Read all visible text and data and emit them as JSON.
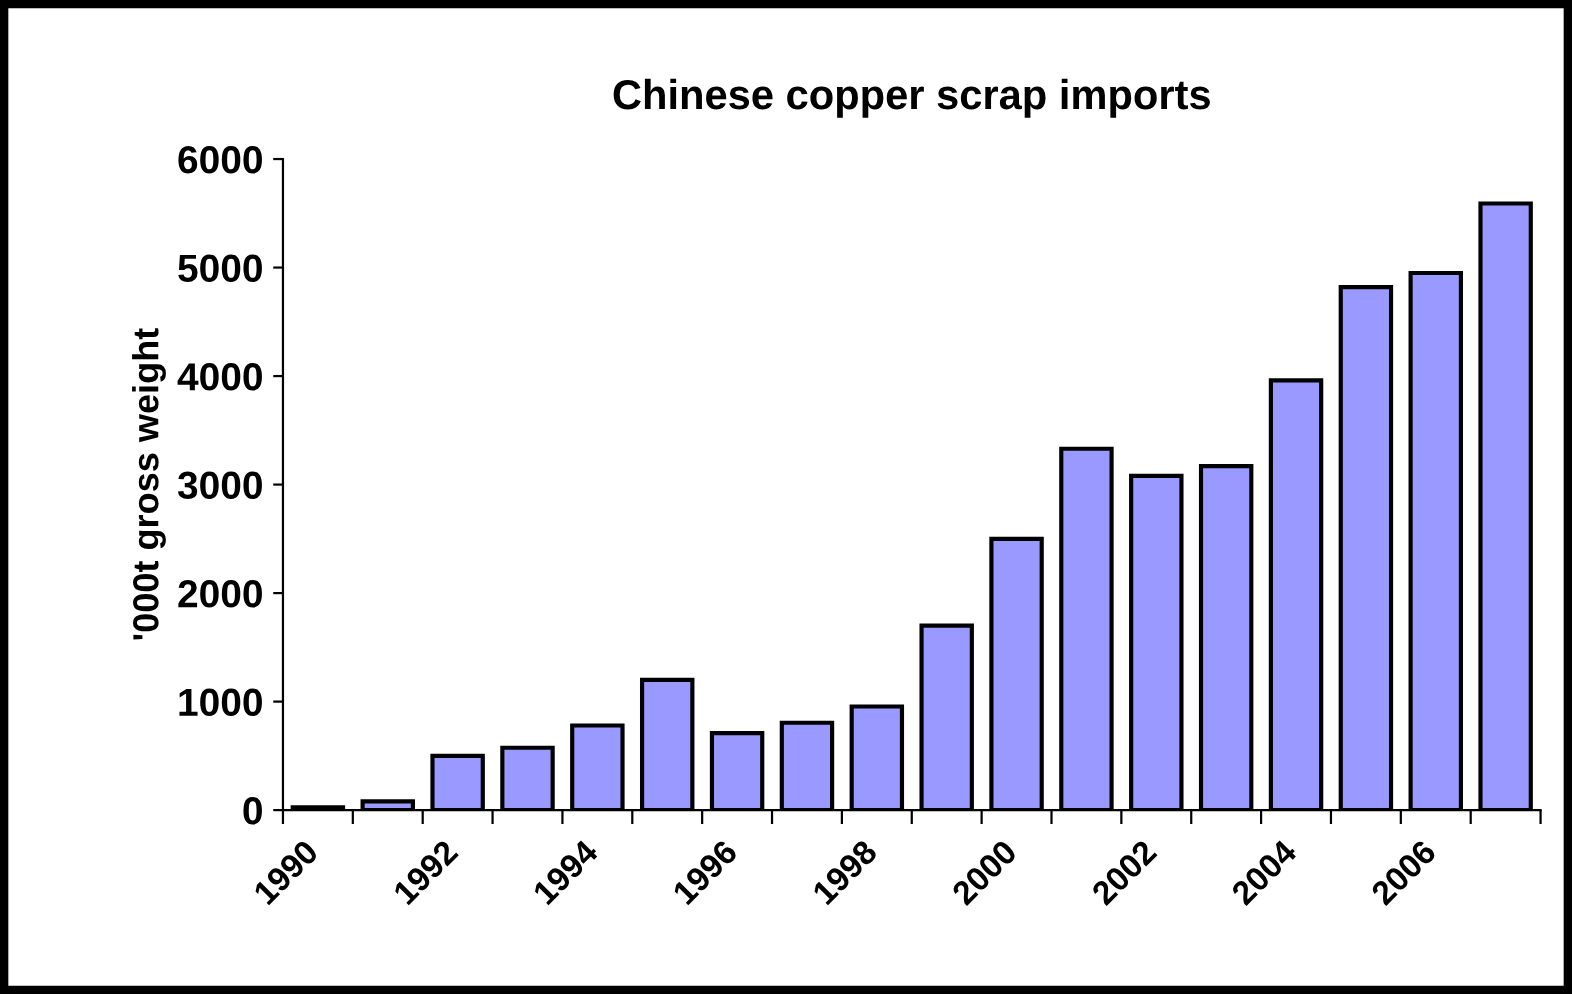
{
  "chart_data": {
    "type": "bar",
    "title": "Chinese copper scrap imports",
    "ylabel": "'000t gross weight",
    "categories": [
      "1990",
      null,
      "1992",
      null,
      "1994",
      null,
      "1996",
      null,
      "1998",
      null,
      "2000",
      null,
      "2002",
      null,
      "2004",
      null,
      "2006",
      null
    ],
    "values": [
      25,
      80,
      500,
      575,
      780,
      1200,
      710,
      805,
      955,
      1700,
      2500,
      3330,
      3080,
      3170,
      3960,
      4820,
      4950,
      5590
    ],
    "color": "#9999ff",
    "ylim": [
      0,
      6000
    ],
    "yticks": [
      0,
      1000,
      2000,
      3000,
      4000,
      5000,
      6000
    ],
    "grid": false,
    "legend": false
  }
}
